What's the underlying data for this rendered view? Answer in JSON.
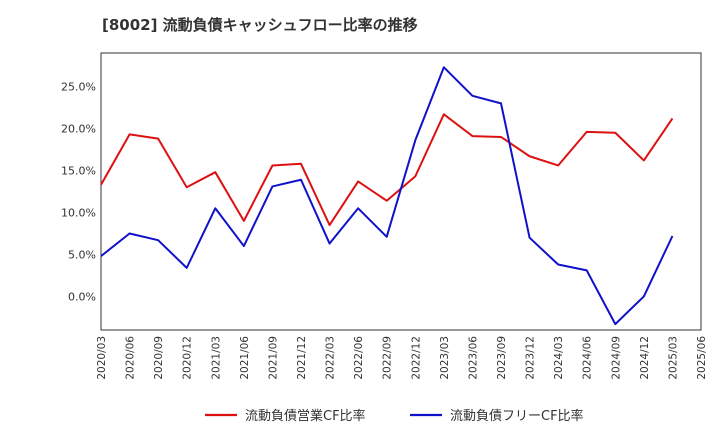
{
  "chart_data": {
    "type": "line",
    "title": "[8002]  流動負債キャッシュフロー比率の推移",
    "xlabel": "",
    "ylabel": "",
    "ylim": [
      -4,
      29
    ],
    "yticks": [
      0,
      5,
      10,
      15,
      20,
      25
    ],
    "ytick_labels": [
      "0.0%",
      "5.0%",
      "10.0%",
      "15.0%",
      "20.0%",
      "25.0%"
    ],
    "x": [
      "2020/03",
      "2020/06",
      "2020/09",
      "2020/12",
      "2021/03",
      "2021/06",
      "2021/09",
      "2021/12",
      "2022/03",
      "2022/06",
      "2022/09",
      "2022/12",
      "2023/03",
      "2023/06",
      "2023/09",
      "2023/12",
      "2024/03",
      "2024/06",
      "2024/09",
      "2024/12",
      "2025/03",
      "2025/06"
    ],
    "grid": true,
    "legend_position": "bottom",
    "series": [
      {
        "name": "流動負債営業CF比率",
        "color": "#dd1111",
        "values": [
          13.3,
          19.3,
          18.8,
          13.0,
          14.8,
          9.0,
          15.6,
          15.8,
          8.5,
          13.7,
          11.4,
          14.3,
          21.7,
          19.1,
          19.0,
          16.7,
          15.6,
          19.6,
          19.5,
          16.2,
          21.2,
          null
        ]
      },
      {
        "name": "流動負債フリーCF比率",
        "color": "#1111cc",
        "values": [
          4.8,
          7.5,
          6.7,
          3.4,
          10.5,
          6.0,
          13.1,
          13.9,
          6.3,
          10.5,
          7.1,
          18.6,
          27.3,
          23.9,
          23.0,
          7.0,
          3.8,
          3.1,
          -3.3,
          0.0,
          7.2,
          null
        ]
      }
    ]
  }
}
